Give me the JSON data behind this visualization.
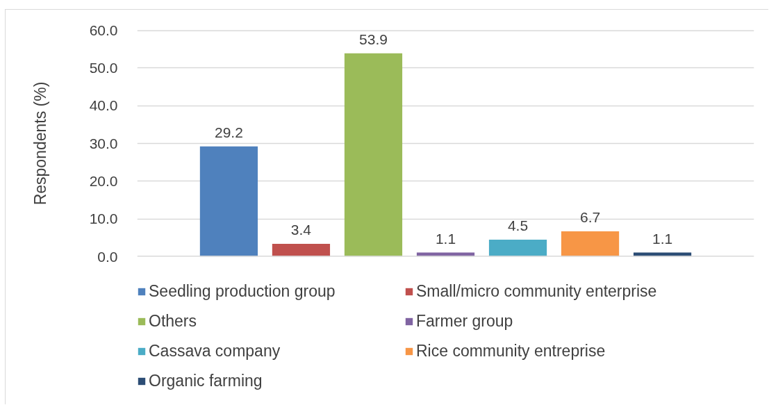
{
  "chart_data": {
    "type": "bar",
    "ylabel": "Respondents (%)",
    "categories": [
      null
    ],
    "series": [
      {
        "name": "Seedling production group",
        "color": "#4f81bd",
        "values": [
          29.2
        ]
      },
      {
        "name": "Small/micro community enterprise",
        "color": "#c0504d",
        "values": [
          3.4
        ]
      },
      {
        "name": "Others",
        "color": "#9bbb59",
        "values": [
          53.9
        ]
      },
      {
        "name": "Farmer group",
        "color": "#8064a2",
        "values": [
          1.1
        ]
      },
      {
        "name": "Cassava company",
        "color": "#4bacc6",
        "values": [
          4.5
        ]
      },
      {
        "name": "Rice community entreprise",
        "color": "#f79646",
        "values": [
          6.7
        ]
      },
      {
        "name": "Organic farming",
        "color": "#2c4d75",
        "values": [
          1.1
        ]
      }
    ],
    "ylim": [
      0,
      60
    ],
    "yticks": [
      {
        "value": 0,
        "label": "0.0"
      },
      {
        "value": 10,
        "label": "10.0"
      },
      {
        "value": 20,
        "label": "20.0"
      },
      {
        "value": 30,
        "label": "30.0"
      },
      {
        "value": 40,
        "label": "40.0"
      },
      {
        "value": 50,
        "label": "50.0"
      },
      {
        "value": 60,
        "label": "60.0"
      }
    ],
    "grid": "y",
    "legend": "bottom",
    "data_labels": true,
    "tick_labels": "y"
  }
}
